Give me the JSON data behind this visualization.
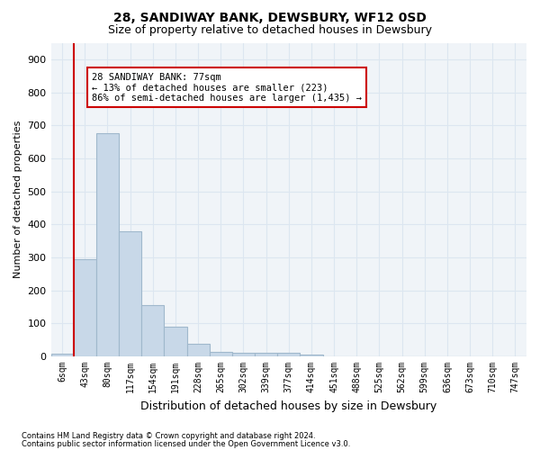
{
  "title": "28, SANDIWAY BANK, DEWSBURY, WF12 0SD",
  "subtitle": "Size of property relative to detached houses in Dewsbury",
  "xlabel": "Distribution of detached houses by size in Dewsbury",
  "ylabel": "Number of detached properties",
  "bar_color": "#c8d8e8",
  "bar_edge_color": "#a0b8cc",
  "grid_color": "#dce6f0",
  "background_color": "#f0f4f8",
  "annotation_box_color": "#cc0000",
  "annotation_line_color": "#cc0000",
  "tick_labels": [
    "6sqm",
    "43sqm",
    "80sqm",
    "117sqm",
    "154sqm",
    "191sqm",
    "228sqm",
    "265sqm",
    "302sqm",
    "339sqm",
    "377sqm",
    "414sqm",
    "451sqm",
    "488sqm",
    "525sqm",
    "562sqm",
    "599sqm",
    "636sqm",
    "673sqm",
    "710sqm",
    "747sqm"
  ],
  "bar_values": [
    8,
    295,
    675,
    380,
    155,
    90,
    37,
    15,
    12,
    11,
    10,
    5,
    0,
    0,
    0,
    0,
    0,
    0,
    0,
    0,
    0
  ],
  "ylim": [
    0,
    950
  ],
  "yticks": [
    0,
    100,
    200,
    300,
    400,
    500,
    600,
    700,
    800,
    900
  ],
  "property_label": "28 SANDIWAY BANK: 77sqm",
  "pct_smaller": 13,
  "n_smaller": 223,
  "pct_larger_semi": 86,
  "n_larger_semi": 1435,
  "vline_bar_index": 1,
  "footnote1": "Contains HM Land Registry data © Crown copyright and database right 2024.",
  "footnote2": "Contains public sector information licensed under the Open Government Licence v3.0."
}
